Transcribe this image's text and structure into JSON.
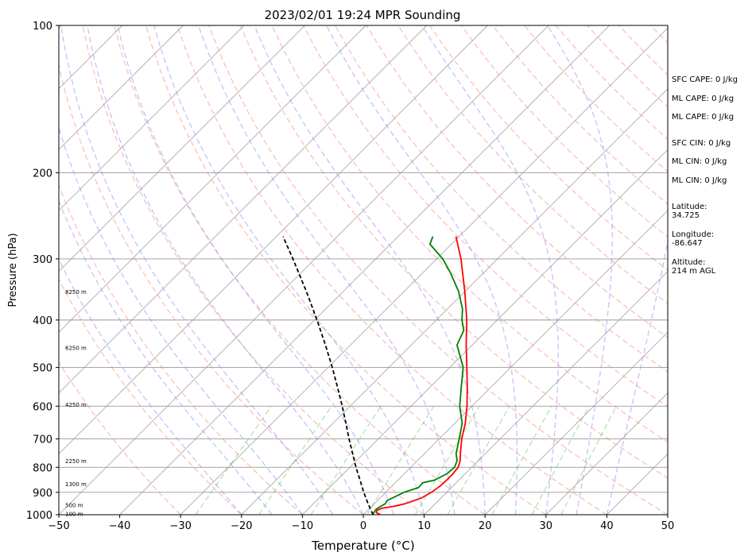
{
  "chart_data": {
    "type": "line",
    "title": "2023/02/01 19:24 MPR Sounding",
    "xlabel": "Temperature (°C)",
    "ylabel": "Pressure (hPa)",
    "xlim": [
      -50,
      50
    ],
    "ylim": [
      1000,
      100
    ],
    "y_scale": "log",
    "grid": true,
    "x_ticks": [
      "−50",
      "−40",
      "−30",
      "−20",
      "−10",
      "0",
      "10",
      "20",
      "30",
      "40",
      "50"
    ],
    "y_ticks": [
      {
        "p": 100,
        "label": "100"
      },
      {
        "p": 200,
        "label": "200"
      },
      {
        "p": 300,
        "label": "300"
      },
      {
        "p": 400,
        "label": "400"
      },
      {
        "p": 500,
        "label": "500"
      },
      {
        "p": 600,
        "label": "600"
      },
      {
        "p": 700,
        "label": "700"
      },
      {
        "p": 800,
        "label": "800"
      },
      {
        "p": 900,
        "label": "900"
      },
      {
        "p": 1000,
        "label": "1000"
      }
    ],
    "height_labels": [
      {
        "p": 350,
        "label": "8250 m"
      },
      {
        "p": 455,
        "label": "6250 m"
      },
      {
        "p": 595,
        "label": "4250 m"
      },
      {
        "p": 775,
        "label": "2250 m"
      },
      {
        "p": 865,
        "label": "1300 m"
      },
      {
        "p": 955,
        "label": "500 m"
      },
      {
        "p": 995,
        "label": "100 m"
      }
    ],
    "series": [
      {
        "color": "#ff0000",
        "points": [
          [
            1000,
            2.8
          ],
          [
            990,
            1.8
          ],
          [
            980,
            1.5
          ],
          [
            970,
            2.0
          ],
          [
            960,
            3.8
          ],
          [
            950,
            5.0
          ],
          [
            925,
            6.8
          ],
          [
            900,
            7.5
          ],
          [
            875,
            7.9
          ],
          [
            850,
            8.0
          ],
          [
            825,
            8.0
          ],
          [
            800,
            7.8
          ],
          [
            775,
            7.0
          ],
          [
            750,
            5.9
          ],
          [
            700,
            3.7
          ],
          [
            650,
            1.7
          ],
          [
            600,
            -0.8
          ],
          [
            550,
            -3.8
          ],
          [
            500,
            -7.2
          ],
          [
            450,
            -11.0
          ],
          [
            400,
            -15.0
          ],
          [
            350,
            -20.0
          ],
          [
            300,
            -26.0
          ],
          [
            270,
            -30.5
          ]
        ]
      },
      {
        "color": "#008000",
        "points": [
          [
            1000,
            1.5
          ],
          [
            990,
            1.4
          ],
          [
            975,
            1.2
          ],
          [
            960,
            1.5
          ],
          [
            950,
            1.8
          ],
          [
            935,
            1.6
          ],
          [
            920,
            2.2
          ],
          [
            900,
            3.0
          ],
          [
            880,
            4.6
          ],
          [
            860,
            4.5
          ],
          [
            850,
            6.0
          ],
          [
            825,
            7.0
          ],
          [
            800,
            7.2
          ],
          [
            775,
            6.5
          ],
          [
            750,
            5.2
          ],
          [
            700,
            3.3
          ],
          [
            650,
            1.2
          ],
          [
            600,
            -2.0
          ],
          [
            550,
            -4.8
          ],
          [
            500,
            -7.8
          ],
          [
            450,
            -12.5
          ],
          [
            420,
            -13.8
          ],
          [
            400,
            -15.8
          ],
          [
            380,
            -17.5
          ],
          [
            350,
            -21.0
          ],
          [
            320,
            -25.5
          ],
          [
            300,
            -29.0
          ],
          [
            280,
            -33.5
          ],
          [
            270,
            -34.3
          ]
        ]
      },
      {
        "color": "#000000",
        "dashed": true,
        "points": [
          [
            1000,
            1.6
          ],
          [
            950,
            -1.0
          ],
          [
            900,
            -3.6
          ],
          [
            850,
            -6.2
          ],
          [
            800,
            -9.0
          ],
          [
            750,
            -11.8
          ],
          [
            700,
            -14.8
          ],
          [
            650,
            -17.9
          ],
          [
            600,
            -21.3
          ],
          [
            550,
            -25.1
          ],
          [
            500,
            -29.3
          ],
          [
            450,
            -34.1
          ],
          [
            400,
            -39.6
          ],
          [
            350,
            -46.0
          ],
          [
            300,
            -53.6
          ],
          [
            270,
            -58.9
          ]
        ]
      }
    ]
  },
  "side_panel": {
    "sfc_cape": "SFC CAPE: 0 J/kg",
    "ml_cape_1": "ML CAPE: 0 J/kg",
    "ml_cape_2": "ML CAPE: 0 J/kg",
    "sfc_cin": "SFC CIN: 0 J/kg",
    "ml_cin_1": "ML CIN: 0 J/kg",
    "ml_cin_2": "ML CIN: 0 J/kg",
    "latitude_label": "Latitude:",
    "latitude_value": "34.725",
    "longitude_label": "Longitude:",
    "longitude_value": "-86.647",
    "altitude_label": "Altitude:",
    "altitude_value": "214 m AGL"
  }
}
